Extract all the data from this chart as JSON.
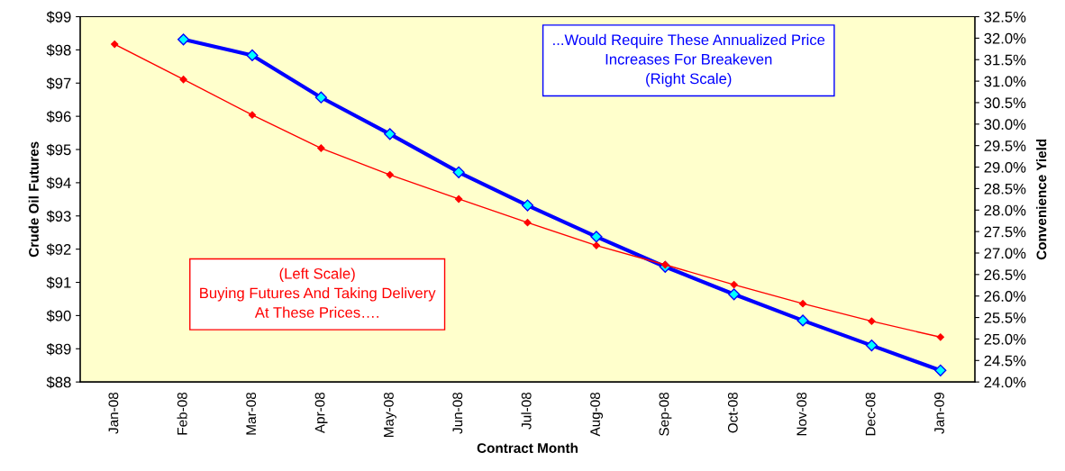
{
  "chart_data": {
    "type": "line",
    "categories": [
      "Jan-08",
      "Feb-08",
      "Mar-08",
      "Apr-08",
      "May-08",
      "Jun-08",
      "Jul-08",
      "Aug-08",
      "Sep-08",
      "Oct-08",
      "Nov-08",
      "Dec-08",
      "Jan-09"
    ],
    "series": [
      {
        "color": "#ff0000",
        "values": [
          98.17,
          97.11,
          96.04,
          95.04,
          94.24,
          93.51,
          92.8,
          92.11,
          91.53,
          90.93,
          90.36,
          89.83,
          89.35
        ]
      },
      {
        "color": "#0000ff",
        "axis": "y2",
        "values": [
          null,
          31.97,
          31.6,
          30.62,
          29.77,
          28.88,
          28.11,
          27.38,
          26.68,
          26.04,
          25.43,
          24.85,
          24.27
        ]
      }
    ],
    "xlabel": "Contract Month",
    "ylabel": "Crude Oil Futures",
    "y2label": "Convenience Yield",
    "ylim": [
      88,
      99
    ],
    "yticks": [
      {
        "value": 88,
        "label": "$88"
      },
      {
        "value": 89,
        "label": "$89"
      },
      {
        "value": 90,
        "label": "$90"
      },
      {
        "value": 91,
        "label": "$91"
      },
      {
        "value": 92,
        "label": "$92"
      },
      {
        "value": 93,
        "label": "$93"
      },
      {
        "value": 94,
        "label": "$94"
      },
      {
        "value": 95,
        "label": "$95"
      },
      {
        "value": 96,
        "label": "$96"
      },
      {
        "value": 97,
        "label": "$97"
      },
      {
        "value": 98,
        "label": "$98"
      },
      {
        "value": 99,
        "label": "$99"
      }
    ],
    "y2lim": [
      24.0,
      32.5
    ],
    "y2ticks": [
      {
        "value": 24.0,
        "label": "24.0%"
      },
      {
        "value": 24.5,
        "label": "24.5%"
      },
      {
        "value": 25.0,
        "label": "25.0%"
      },
      {
        "value": 25.5,
        "label": "25.5%"
      },
      {
        "value": 26.0,
        "label": "26.0%"
      },
      {
        "value": 26.5,
        "label": "26.5%"
      },
      {
        "value": 27.0,
        "label": "27.0%"
      },
      {
        "value": 27.5,
        "label": "27.5%"
      },
      {
        "value": 28.0,
        "label": "28.0%"
      },
      {
        "value": 28.5,
        "label": "28.5%"
      },
      {
        "value": 29.0,
        "label": "29.0%"
      },
      {
        "value": 29.5,
        "label": "29.5%"
      },
      {
        "value": 30.0,
        "label": "30.0%"
      },
      {
        "value": 30.5,
        "label": "30.5%"
      },
      {
        "value": 31.0,
        "label": "31.0%"
      },
      {
        "value": 31.5,
        "label": "31.5%"
      },
      {
        "value": 32.0,
        "label": "32.0%"
      },
      {
        "value": 32.5,
        "label": "32.5%"
      }
    ],
    "annotations": [
      "...Would Require These Annualized Price\nIncreases For Breakeven\n(Right Scale)",
      "(Left Scale)\nBuying Futures And Taking Delivery\nAt These Prices…."
    ],
    "marker": "diamond",
    "grid": false,
    "legend": false
  }
}
